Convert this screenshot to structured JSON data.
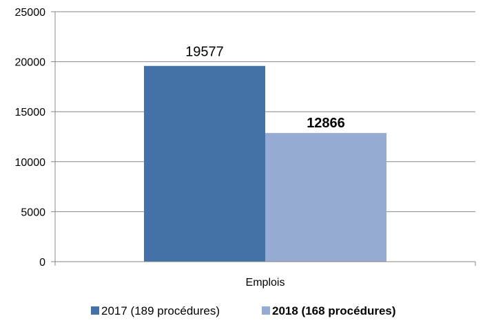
{
  "chart_data": {
    "type": "bar",
    "categories": [
      "Emplois"
    ],
    "series": [
      {
        "name": "2017 (189 procédures)",
        "values": [
          19577
        ],
        "color": "#4472a8",
        "label_bold": false
      },
      {
        "name": "2018 (168 procédures)",
        "values": [
          12866
        ],
        "color": "#95abd3",
        "label_bold": true
      }
    ],
    "ylim": [
      0,
      25000
    ],
    "yticks": [
      0,
      5000,
      10000,
      15000,
      20000,
      25000
    ],
    "grid": true,
    "legend_position": "bottom"
  }
}
